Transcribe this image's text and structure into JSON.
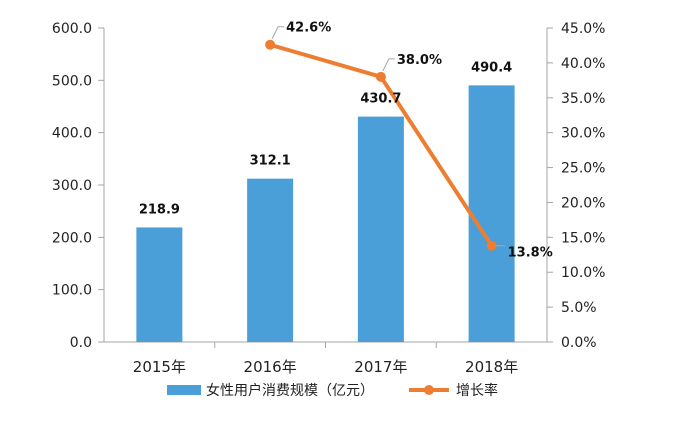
{
  "chart_data": {
    "type": "bar+line",
    "categories": [
      "2015年",
      "2016年",
      "2017年",
      "2018年"
    ],
    "series": [
      {
        "name": "女性用户消费规模（亿元）",
        "type": "bar",
        "axis": "left",
        "values": [
          218.9,
          312.1,
          430.7,
          490.4
        ],
        "labels": [
          "218.9",
          "312.1",
          "430.7",
          "490.4"
        ],
        "color": "#4a9fd8"
      },
      {
        "name": "增长率",
        "type": "line",
        "axis": "right",
        "values": [
          null,
          42.6,
          38.0,
          13.8
        ],
        "labels": [
          "",
          "42.6%",
          "38.0%",
          "13.8%"
        ],
        "color": "#ed7d31"
      }
    ],
    "y_left": {
      "lim": [
        0,
        600
      ],
      "ticks": [
        "0.0",
        "100.0",
        "200.0",
        "300.0",
        "400.0",
        "500.0",
        "600.0"
      ]
    },
    "y_right": {
      "lim": [
        0,
        45
      ],
      "ticks": [
        "0.0%",
        "5.0%",
        "10.0%",
        "15.0%",
        "20.0%",
        "25.0%",
        "30.0%",
        "35.0%",
        "40.0%",
        "45.0%"
      ]
    },
    "legend": {
      "placement": "bottom",
      "items": [
        "女性用户消费规模（亿元）",
        "增长率"
      ]
    },
    "grid": false,
    "title": "",
    "xlabel": "",
    "ylabel": ""
  }
}
